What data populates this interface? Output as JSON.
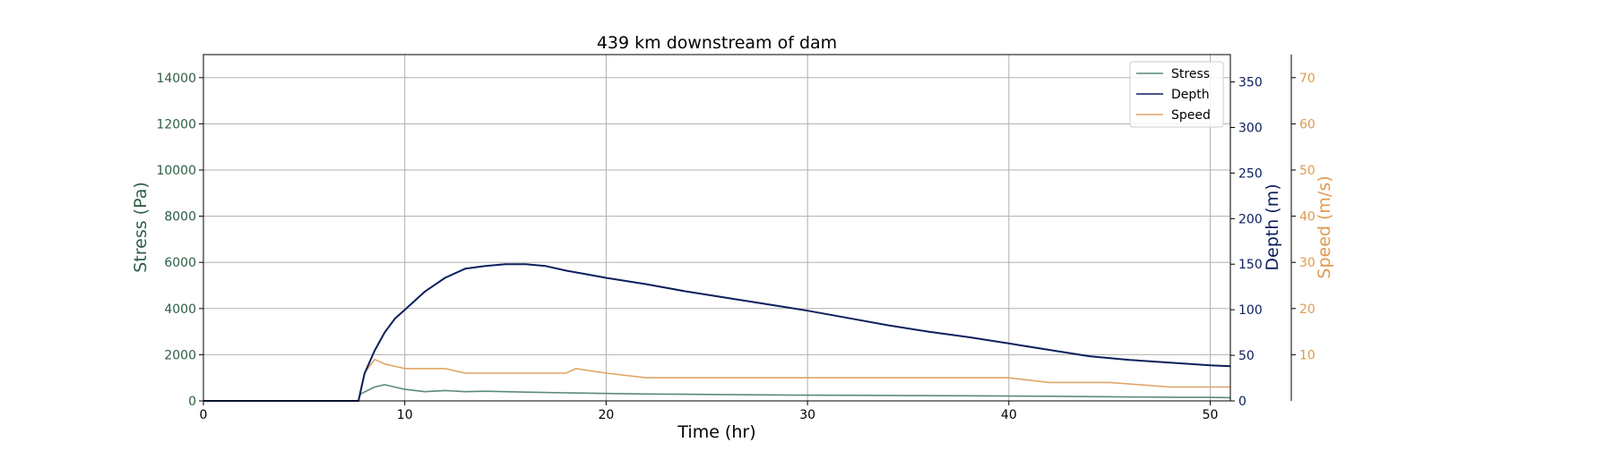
{
  "chart_data": {
    "type": "line",
    "title": "439 km downstream of dam",
    "xlabel": "Time (hr)",
    "xlim": [
      0,
      51
    ],
    "xticks": [
      0,
      10,
      20,
      30,
      40,
      50
    ],
    "grid": true,
    "legend_position": "top-right",
    "axes": {
      "stress": {
        "label": "Stress (Pa)",
        "color": "#2e5e45",
        "ylim": [
          0,
          15000
        ],
        "ticks": [
          0,
          2000,
          4000,
          6000,
          8000,
          10000,
          12000,
          14000
        ]
      },
      "depth": {
        "label": "Depth (m)",
        "color": "#0b1f5c",
        "ylim": [
          0,
          380
        ],
        "ticks": [
          0,
          50,
          100,
          150,
          200,
          250,
          300,
          350
        ]
      },
      "speed": {
        "label": "Speed (m/s)",
        "color": "#e09a50",
        "ylim": [
          0,
          75
        ],
        "ticks": [
          10,
          20,
          30,
          40,
          50,
          60,
          70
        ]
      }
    },
    "series": [
      {
        "name": "Stress",
        "axis": "stress",
        "color": "#5a8a7a",
        "x": [
          0,
          7.7,
          7.8,
          8.5,
          9,
          10,
          11,
          12,
          13,
          14,
          15,
          16,
          18,
          20,
          22,
          25,
          28,
          30,
          33,
          35,
          38,
          40,
          42,
          45,
          48,
          50,
          51
        ],
        "y": [
          0,
          0,
          300,
          600,
          700,
          500,
          400,
          450,
          400,
          420,
          400,
          380,
          350,
          320,
          300,
          280,
          260,
          250,
          240,
          230,
          220,
          210,
          200,
          180,
          160,
          150,
          140
        ]
      },
      {
        "name": "Depth",
        "axis": "depth",
        "color": "#0b1f5c",
        "x": [
          0,
          7.7,
          8,
          8.5,
          9,
          9.5,
          10,
          11,
          12,
          13,
          14,
          15,
          16,
          17,
          18,
          19,
          20,
          22,
          24,
          26,
          28,
          30,
          32,
          34,
          36,
          38,
          40,
          42,
          44,
          46,
          48,
          50,
          51
        ],
        "y": [
          0,
          0,
          30,
          55,
          75,
          90,
          100,
          120,
          135,
          145,
          148,
          150,
          150,
          148,
          143,
          139,
          135,
          128,
          120,
          113,
          106,
          99,
          91,
          83,
          76,
          70,
          63,
          56,
          49,
          45,
          42,
          39,
          38
        ]
      },
      {
        "name": "Speed",
        "axis": "speed",
        "color": "#e0a466",
        "x": [
          0,
          7.7,
          8,
          8.5,
          9,
          10,
          11,
          12,
          13,
          14,
          16,
          18,
          18.5,
          20,
          22,
          25,
          28,
          30,
          33,
          35,
          38,
          40,
          42,
          45,
          48,
          50,
          51
        ],
        "y": [
          0,
          0,
          6,
          9,
          8,
          7,
          7,
          7,
          6,
          6,
          6,
          6,
          7,
          6,
          5,
          5,
          5,
          5,
          5,
          5,
          5,
          5,
          4,
          4,
          3,
          3,
          3
        ]
      }
    ]
  }
}
